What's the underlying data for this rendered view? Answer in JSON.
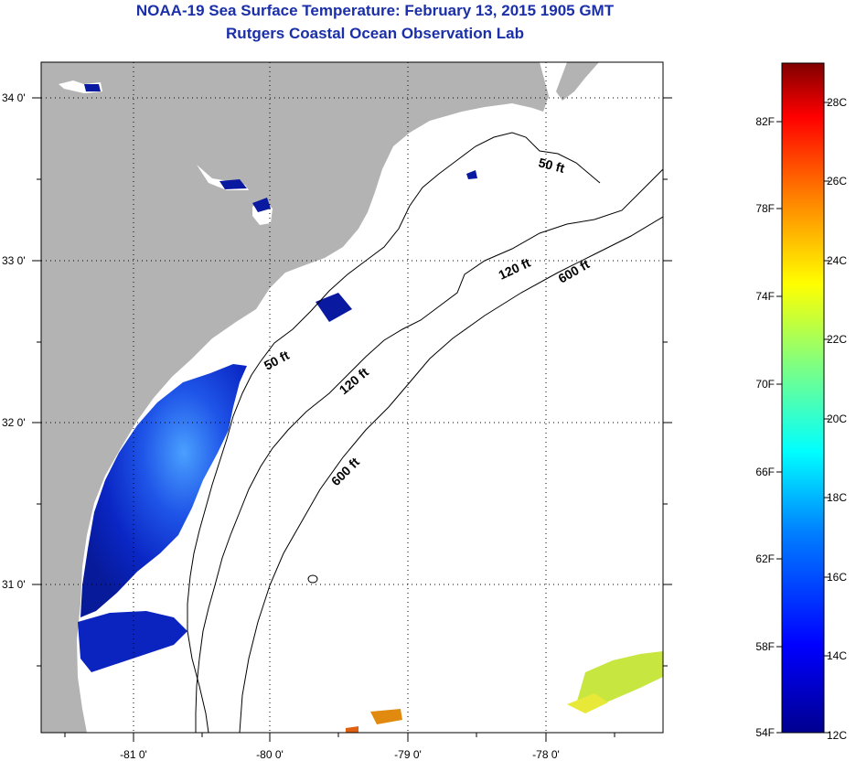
{
  "header": {
    "title": "NOAA-19 Sea Surface Temperature:  February 13, 2015 1905 GMT",
    "subtitle": "Rutgers Coastal Ocean Observation Lab"
  },
  "map": {
    "lon_labels": [
      "-81 0'",
      "-80 0'",
      "-79 0'",
      "-78 0'"
    ],
    "lat_labels": [
      "34 0'",
      "33 0'",
      "32 0'",
      "31 0'"
    ],
    "contours": {
      "c50_upper": "50 ft",
      "c50_lower": "50 ft",
      "c120_upper": "120 ft",
      "c120_lower": "120 ft",
      "c600_upper": "600 ft",
      "c600_lower": "600 ft"
    }
  },
  "colorbar": {
    "fahrenheit_labels": [
      "82F",
      "78F",
      "74F",
      "70F",
      "66F",
      "62F",
      "58F",
      "54F"
    ],
    "celsius_labels": [
      "28C",
      "26C",
      "24C",
      "22C",
      "20C",
      "18C",
      "16C",
      "14C",
      "12C"
    ],
    "colors": [
      "#00008f",
      "#0000ff",
      "#0080ff",
      "#00ffff",
      "#80ff80",
      "#ffff00",
      "#ff8000",
      "#ff0000",
      "#800000"
    ]
  }
}
